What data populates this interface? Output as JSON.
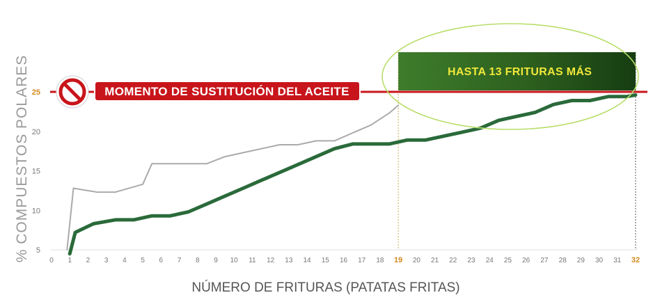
{
  "chart_data": {
    "type": "line",
    "xlabel": "NÚMERO DE FRITURAS (PATATAS FRITAS)",
    "ylabel": "% COMPUESTOS POLARES",
    "x_ticks": [
      0,
      1,
      2,
      3,
      4,
      5,
      6,
      7,
      8,
      9,
      10,
      11,
      12,
      13,
      14,
      15,
      16,
      17,
      18,
      19,
      20,
      21,
      22,
      23,
      24,
      25,
      26,
      27,
      28,
      29,
      30,
      31,
      32
    ],
    "x_highlight": [
      19,
      32
    ],
    "y_ticks": [
      5,
      10,
      15,
      20,
      25
    ],
    "y_highlight": [
      25
    ],
    "xlim": [
      0,
      32
    ],
    "ylim": [
      5,
      27.5
    ],
    "grid": false,
    "threshold": {
      "value": 25,
      "label": "MOMENTO DE SUSTITUCIÓN DEL ACEITE",
      "icon": "prohibited-icon"
    },
    "callout": {
      "label": "HASTA 13 FRITURAS MÁS",
      "from_x": 19,
      "to_x": 32
    },
    "series": [
      {
        "color": "#aaaaaa",
        "x": [
          0.85,
          1.2,
          2.5,
          3.5,
          5,
          5.5,
          6.5,
          7.5,
          8.5,
          9.5,
          10.5,
          11.5,
          12.5,
          13.5,
          14.5,
          15.5,
          16.5,
          17.5,
          18.5,
          19
        ],
        "y": [
          5,
          12.8,
          12.3,
          12.3,
          13.3,
          15.9,
          15.9,
          15.9,
          15.9,
          16.8,
          17.3,
          17.8,
          18.3,
          18.3,
          18.8,
          18.8,
          19.8,
          20.8,
          22.3,
          23.3
        ]
      },
      {
        "color": "#2a6a3a",
        "x": [
          1,
          1.3,
          2.3,
          3.5,
          4.5,
          5.5,
          6.5,
          7.5,
          8.5,
          9.5,
          10.5,
          11.5,
          12.5,
          13.5,
          14.5,
          15.5,
          16.5,
          17.5,
          18.5,
          19.5,
          20.5,
          21.5,
          22.5,
          23.5,
          24.5,
          25.5,
          26.5,
          27.5,
          28.5,
          29.5,
          30.5,
          31.5,
          32
        ],
        "y": [
          4.5,
          7.2,
          8.3,
          8.8,
          8.8,
          9.3,
          9.3,
          9.8,
          10.8,
          11.8,
          12.8,
          13.8,
          14.8,
          15.8,
          16.8,
          17.8,
          18.4,
          18.4,
          18.4,
          18.9,
          18.9,
          19.4,
          19.9,
          20.4,
          21.4,
          21.9,
          22.4,
          23.4,
          23.9,
          23.9,
          24.4,
          24.4,
          24.6
        ]
      }
    ]
  }
}
